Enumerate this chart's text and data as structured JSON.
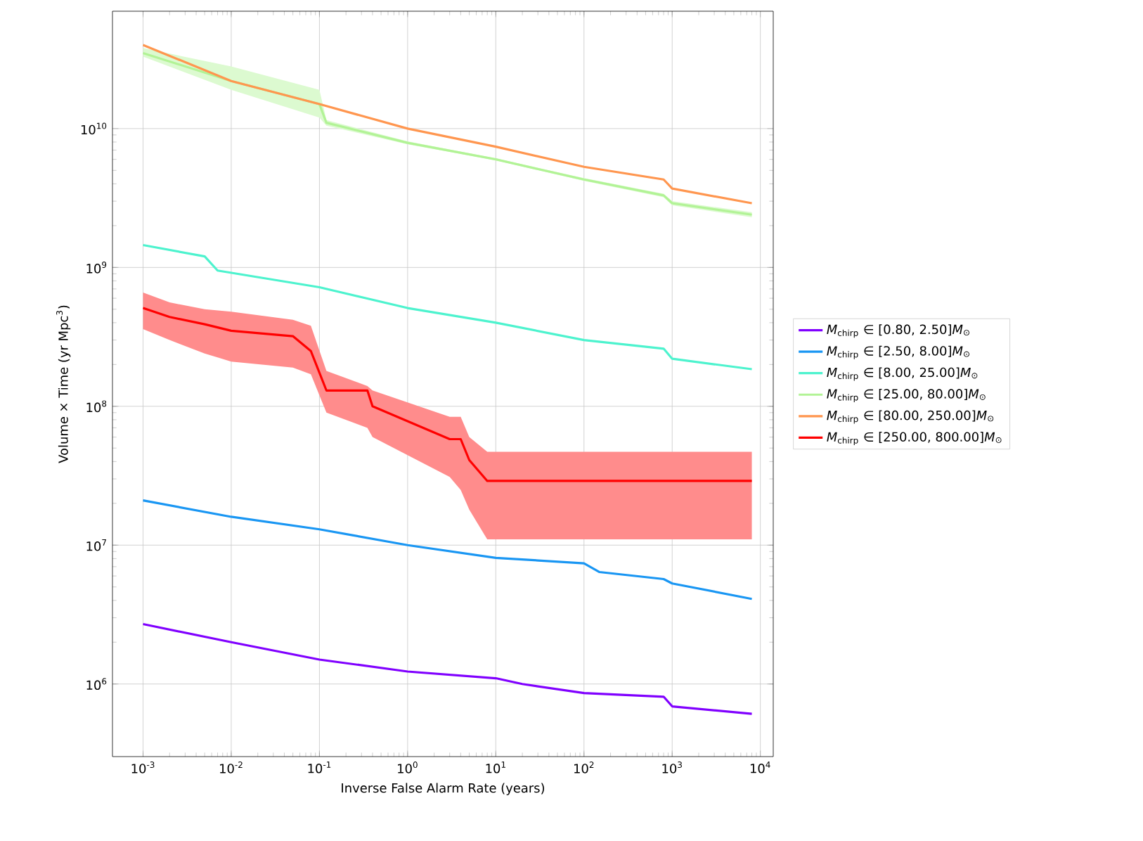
{
  "chart_data": {
    "type": "line",
    "xlabel": "Inverse False Alarm Rate (years)",
    "ylabel": "Volume × Time (yr Mpc$^{3}$)",
    "log": "xy",
    "grid": true,
    "legend": "right",
    "xlim": [
      0.00045,
      14000
    ],
    "ylim": [
      300000,
      70000000000
    ],
    "xticks": [
      {
        "value": 0.001,
        "label": "10$^{-3}$"
      },
      {
        "value": 0.01,
        "label": "10$^{-2}$"
      },
      {
        "value": 0.1,
        "label": "10$^{-1}$"
      },
      {
        "value": 1,
        "label": "10$^{0}$"
      },
      {
        "value": 10,
        "label": "10$^{1}$"
      },
      {
        "value": 100,
        "label": "10$^{2}$"
      },
      {
        "value": 1000,
        "label": "10$^{3}$"
      },
      {
        "value": 10000,
        "label": "10$^{4}$"
      }
    ],
    "yticks": [
      {
        "value": 1000000,
        "label": "10$^{6}$"
      },
      {
        "value": 10000000,
        "label": "10$^{7}$"
      },
      {
        "value": 100000000,
        "label": "10$^{8}$"
      },
      {
        "value": 1000000000,
        "label": "10$^{9}$"
      },
      {
        "value": 10000000000,
        "label": "10$^{10}$"
      }
    ],
    "series": [
      {
        "name": "*M*$_{chirp}$ ∈ [0.80, 2.50]*M*$_{⊙}$",
        "color": "#8000ff",
        "x": [
          0.001,
          0.01,
          0.1,
          1,
          10,
          20,
          100,
          800,
          1000,
          8000
        ],
        "values": [
          2700000,
          2000000,
          1500000,
          1230000,
          1100000,
          1000000,
          860000,
          810000,
          690000,
          610000
        ]
      },
      {
        "name": "*M*$_{chirp}$ ∈ [2.50, 8.00]*M*$_{⊙}$",
        "color": "#1996f3",
        "x": [
          0.001,
          0.01,
          0.1,
          1,
          10,
          100,
          150,
          800,
          1000,
          8000
        ],
        "values": [
          21000000,
          16000000,
          13000000,
          10000000,
          8100000,
          7400000,
          6400000,
          5700000,
          5300000,
          4100000
        ]
      },
      {
        "name": "*M*$_{chirp}$ ∈ [8.00, 25.00]*M*$_{⊙}$",
        "color": "#4df3ce",
        "x": [
          0.001,
          0.005,
          0.007,
          0.1,
          1,
          10,
          100,
          800,
          1000,
          8000
        ],
        "values": [
          1450000000,
          1200000000,
          950000000,
          720000000,
          510000000,
          400000000,
          300000000,
          260000000,
          220000000,
          185000000
        ]
      },
      {
        "name": "*M*$_{chirp}$ ∈ [25.00, 80.00]*M*$_{⊙}$",
        "color": "#b2f396",
        "x": [
          0.001,
          0.01,
          0.1,
          0.12,
          1,
          10,
          100,
          800,
          1000,
          8000
        ],
        "values": [
          35000000000,
          22000000000,
          15000000000,
          11000000000,
          7900000000,
          6000000000,
          4300000000,
          3300000000,
          2900000000,
          2400000000
        ],
        "lower": [
          33000000000,
          19000000000,
          12000000000,
          10500000000,
          7700000000,
          5900000000,
          4200000000,
          3200000000,
          2800000000,
          2300000000
        ],
        "upper": [
          38000000000,
          28000000000,
          19000000000,
          11500000000,
          8100000000,
          6100000000,
          4400000000,
          3400000000,
          3000000000,
          2500000000
        ]
      },
      {
        "name": "*M*$_{chirp}$ ∈ [80.00, 250.00]*M*$_{⊙}$",
        "color": "#ff964f",
        "x": [
          0.001,
          0.01,
          0.1,
          1,
          10,
          100,
          800,
          1000,
          8000
        ],
        "values": [
          40000000000,
          22000000000,
          15000000000,
          10000000000,
          7400000000,
          5300000000,
          4300000000,
          3700000000,
          2900000000
        ]
      },
      {
        "name": "*M*$_{chirp}$ ∈ [250.00, 800.00]*M*$_{⊙}$",
        "color": "#ff0000",
        "x": [
          0.001,
          0.002,
          0.005,
          0.01,
          0.05,
          0.08,
          0.12,
          0.35,
          0.4,
          3,
          4,
          5,
          8,
          8000
        ],
        "values": [
          510000000,
          440000000,
          390000000,
          350000000,
          320000000,
          250000000,
          130000000,
          130000000,
          100000000,
          58000000,
          58000000,
          41000000,
          29000000,
          29000000
        ],
        "lower": [
          360000000,
          300000000,
          240000000,
          210000000,
          190000000,
          170000000,
          90000000,
          70000000,
          60000000,
          31000000,
          25000000,
          18000000,
          11000000,
          11000000
        ],
        "upper": [
          660000000,
          560000000,
          500000000,
          480000000,
          420000000,
          380000000,
          180000000,
          140000000,
          130000000,
          84000000,
          84000000,
          60000000,
          47000000,
          47000000
        ]
      }
    ]
  }
}
